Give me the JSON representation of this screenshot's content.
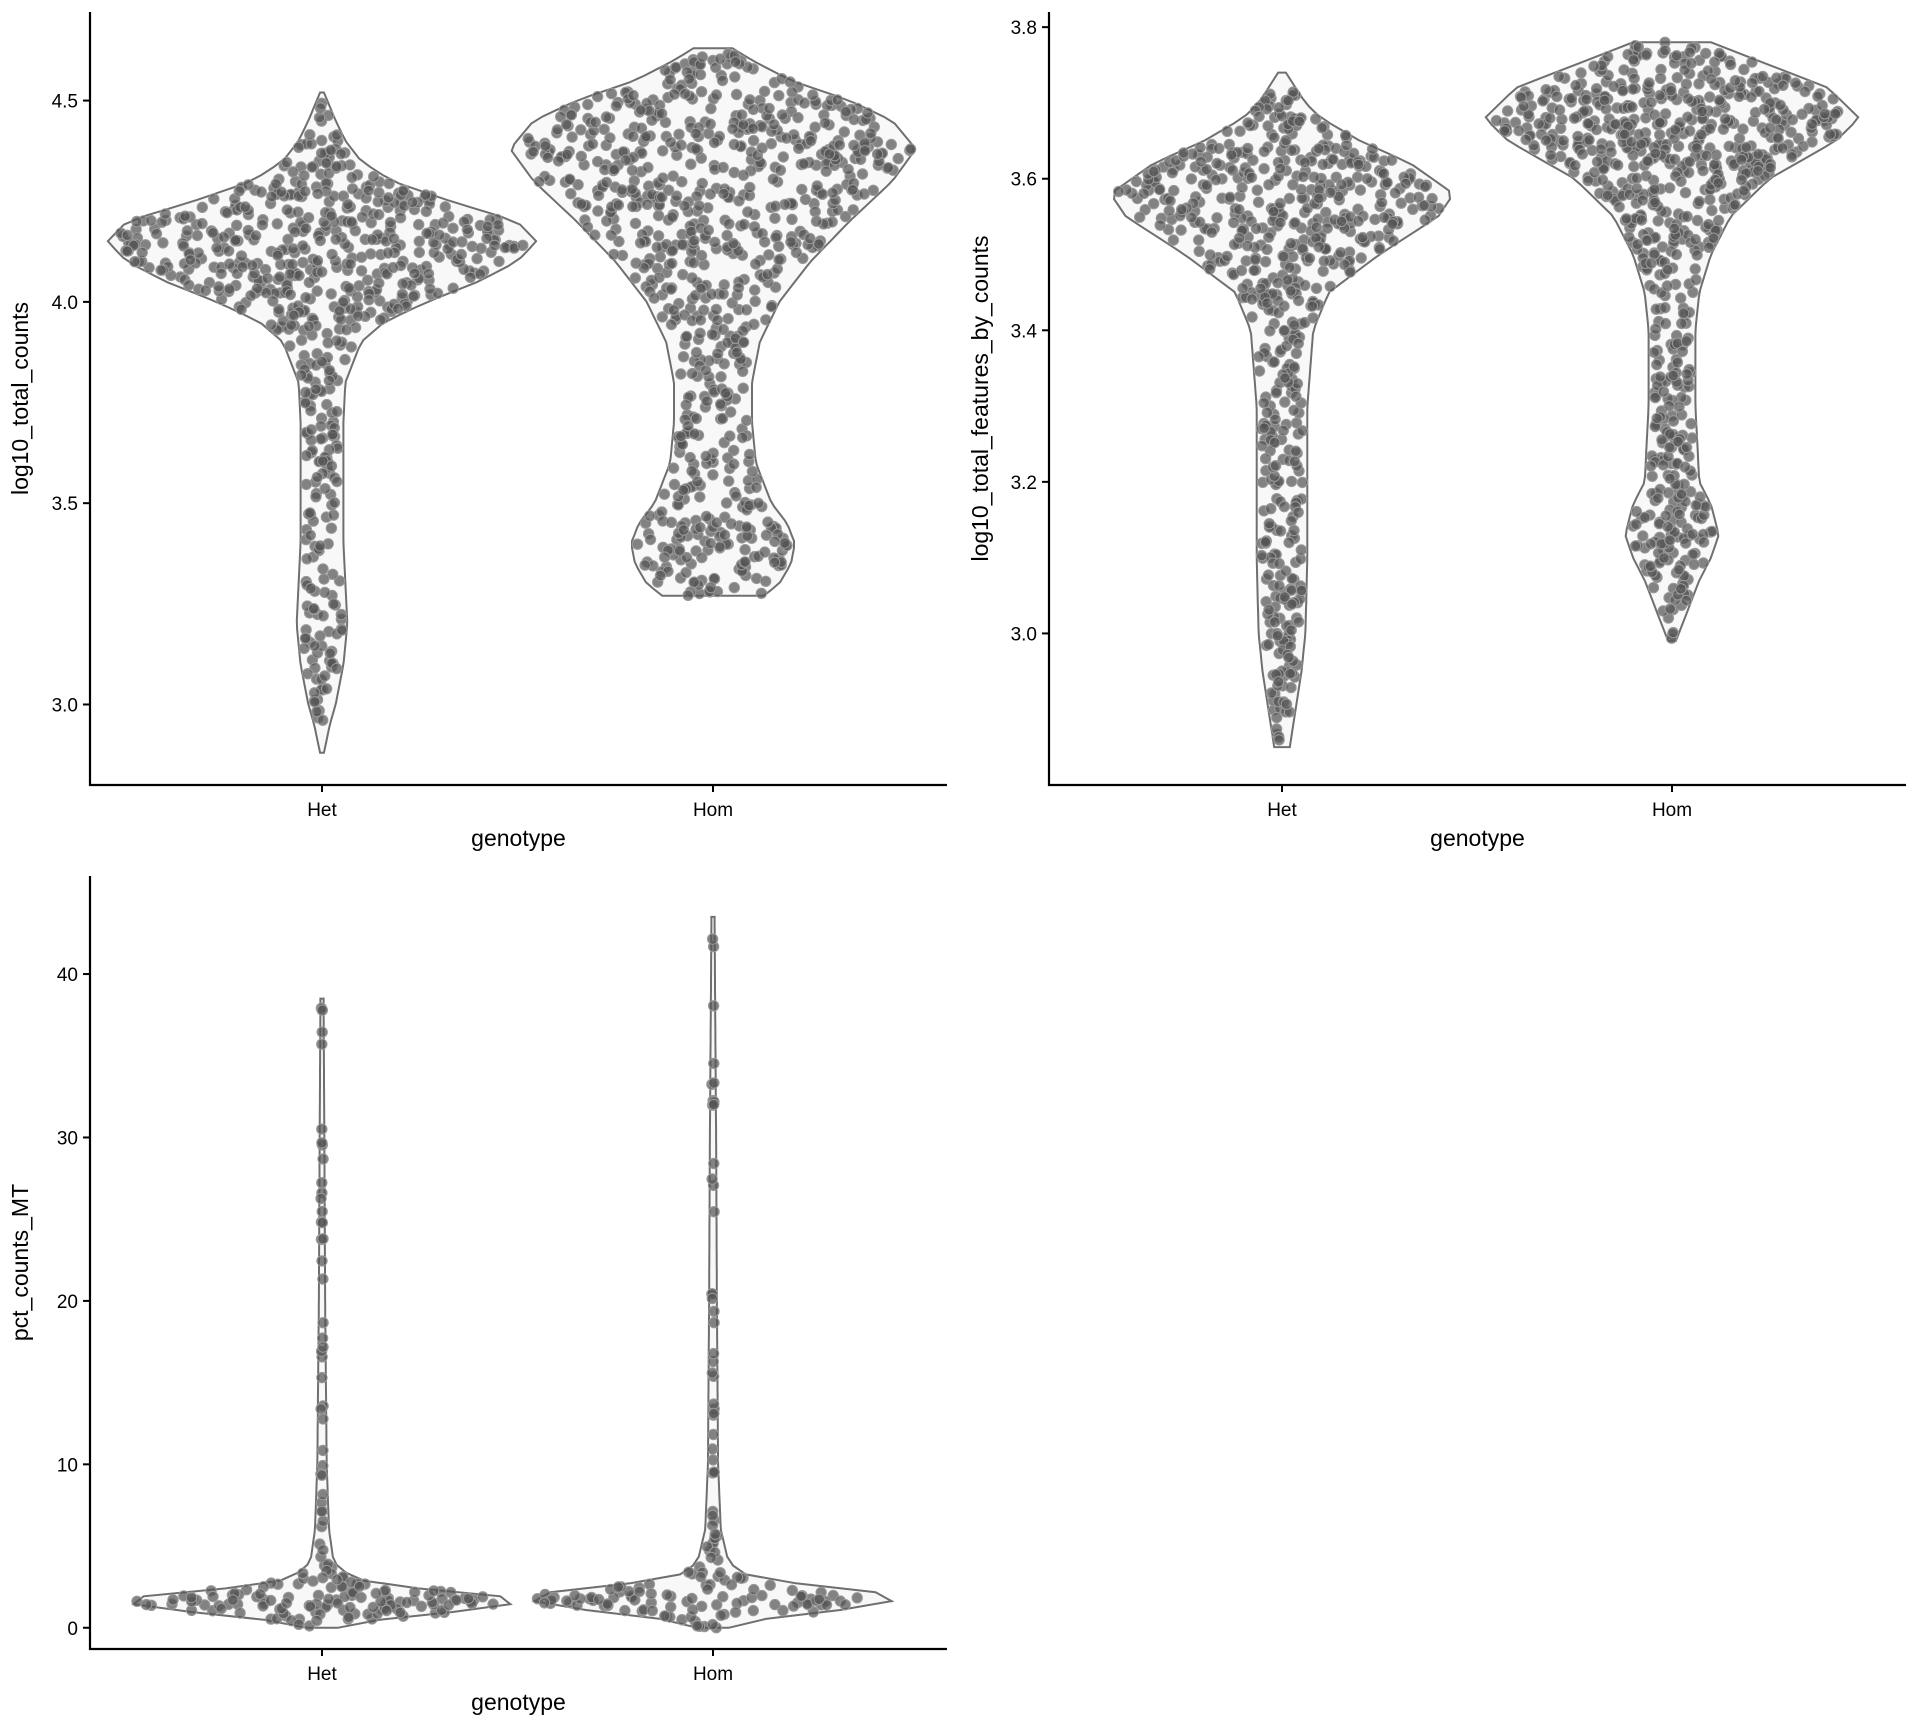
{
  "chart_data": [
    {
      "type": "violin",
      "xlabel": "genotype",
      "ylabel": "log10_total_counts",
      "categories": [
        "Het",
        "Hom"
      ],
      "ylim": [
        2.8,
        4.72
      ],
      "yticks": [
        3.0,
        3.5,
        4.0,
        4.5
      ],
      "ytick_labels": [
        "3.0",
        "3.5",
        "4.0",
        "4.5"
      ],
      "grid": false,
      "series": [
        {
          "category": "Het",
          "min": 2.88,
          "max": 4.52,
          "profile": [
            [
              2.88,
              0.005
            ],
            [
              2.95,
              0.02
            ],
            [
              3.0,
              0.035
            ],
            [
              3.1,
              0.055
            ],
            [
              3.2,
              0.065
            ],
            [
              3.3,
              0.06
            ],
            [
              3.4,
              0.055
            ],
            [
              3.5,
              0.055
            ],
            [
              3.6,
              0.055
            ],
            [
              3.7,
              0.055
            ],
            [
              3.8,
              0.06
            ],
            [
              3.9,
              0.1
            ],
            [
              3.95,
              0.16
            ],
            [
              4.0,
              0.27
            ],
            [
              4.05,
              0.4
            ],
            [
              4.1,
              0.5
            ],
            [
              4.15,
              0.55
            ],
            [
              4.2,
              0.5
            ],
            [
              4.25,
              0.33
            ],
            [
              4.3,
              0.18
            ],
            [
              4.35,
              0.1
            ],
            [
              4.4,
              0.06
            ],
            [
              4.45,
              0.035
            ],
            [
              4.52,
              0.005
            ]
          ]
        },
        {
          "category": "Hom",
          "min": 3.27,
          "max": 4.63,
          "profile": [
            [
              3.27,
              0.13
            ],
            [
              3.3,
              0.17
            ],
            [
              3.35,
              0.2
            ],
            [
              3.4,
              0.21
            ],
            [
              3.45,
              0.19
            ],
            [
              3.5,
              0.15
            ],
            [
              3.6,
              0.11
            ],
            [
              3.7,
              0.1
            ],
            [
              3.8,
              0.1
            ],
            [
              3.9,
              0.12
            ],
            [
              4.0,
              0.17
            ],
            [
              4.1,
              0.25
            ],
            [
              4.2,
              0.35
            ],
            [
              4.3,
              0.46
            ],
            [
              4.38,
              0.52
            ],
            [
              4.45,
              0.46
            ],
            [
              4.5,
              0.35
            ],
            [
              4.55,
              0.2
            ],
            [
              4.6,
              0.1
            ],
            [
              4.63,
              0.05
            ]
          ]
        }
      ]
    },
    {
      "type": "violin",
      "xlabel": "genotype",
      "ylabel": "log10_total_features_by_counts",
      "categories": [
        "Het",
        "Hom"
      ],
      "ylim": [
        2.8,
        3.82
      ],
      "yticks": [
        3.0,
        3.2,
        3.4,
        3.6,
        3.8
      ],
      "ytick_labels": [
        "3.0",
        "3.2",
        "3.4",
        "3.6",
        "3.8"
      ],
      "grid": false,
      "series": [
        {
          "category": "Het",
          "min": 2.85,
          "max": 3.74,
          "profile": [
            [
              2.85,
              0.02
            ],
            [
              2.9,
              0.035
            ],
            [
              2.95,
              0.05
            ],
            [
              3.0,
              0.06
            ],
            [
              3.1,
              0.065
            ],
            [
              3.2,
              0.065
            ],
            [
              3.3,
              0.065
            ],
            [
              3.4,
              0.08
            ],
            [
              3.45,
              0.12
            ],
            [
              3.5,
              0.25
            ],
            [
              3.55,
              0.4
            ],
            [
              3.58,
              0.44
            ],
            [
              3.62,
              0.33
            ],
            [
              3.65,
              0.2
            ],
            [
              3.68,
              0.1
            ],
            [
              3.7,
              0.06
            ],
            [
              3.74,
              0.01
            ]
          ]
        },
        {
          "category": "Hom",
          "min": 2.99,
          "max": 3.78,
          "profile": [
            [
              2.99,
              0.01
            ],
            [
              3.03,
              0.04
            ],
            [
              3.07,
              0.07
            ],
            [
              3.1,
              0.1
            ],
            [
              3.13,
              0.12
            ],
            [
              3.17,
              0.1
            ],
            [
              3.2,
              0.07
            ],
            [
              3.3,
              0.06
            ],
            [
              3.4,
              0.06
            ],
            [
              3.45,
              0.07
            ],
            [
              3.5,
              0.1
            ],
            [
              3.55,
              0.15
            ],
            [
              3.6,
              0.25
            ],
            [
              3.65,
              0.42
            ],
            [
              3.68,
              0.48
            ],
            [
              3.72,
              0.4
            ],
            [
              3.75,
              0.25
            ],
            [
              3.78,
              0.1
            ]
          ]
        }
      ]
    },
    {
      "type": "violin",
      "xlabel": "genotype",
      "ylabel": "pct_counts_MT",
      "categories": [
        "Het",
        "Hom"
      ],
      "ylim": [
        -1.3,
        46
      ],
      "yticks": [
        0,
        10,
        20,
        30,
        40
      ],
      "ytick_labels": [
        "0",
        "10",
        "20",
        "30",
        "40"
      ],
      "grid": false,
      "series": [
        {
          "category": "Het",
          "min": 0.0,
          "max": 38.5,
          "profile": [
            [
              0.0,
              0.04
            ],
            [
              0.5,
              0.15
            ],
            [
              1.0,
              0.35
            ],
            [
              1.5,
              0.5
            ],
            [
              2.0,
              0.45
            ],
            [
              2.5,
              0.2
            ],
            [
              3.0,
              0.08
            ],
            [
              4.0,
              0.03
            ],
            [
              6.0,
              0.018
            ],
            [
              10.0,
              0.012
            ],
            [
              20.0,
              0.008
            ],
            [
              30.0,
              0.006
            ],
            [
              38.5,
              0.004
            ]
          ]
        },
        {
          "category": "Hom",
          "min": 0.0,
          "max": 43.5,
          "profile": [
            [
              0.0,
              0.04
            ],
            [
              0.5,
              0.12
            ],
            [
              1.0,
              0.3
            ],
            [
              1.5,
              0.45
            ],
            [
              2.0,
              0.48
            ],
            [
              2.5,
              0.3
            ],
            [
              3.0,
              0.1
            ],
            [
              4.0,
              0.04
            ],
            [
              6.0,
              0.02
            ],
            [
              10.0,
              0.013
            ],
            [
              20.0,
              0.01
            ],
            [
              30.0,
              0.008
            ],
            [
              40.0,
              0.005
            ],
            [
              43.5,
              0.004
            ]
          ]
        }
      ]
    }
  ]
}
